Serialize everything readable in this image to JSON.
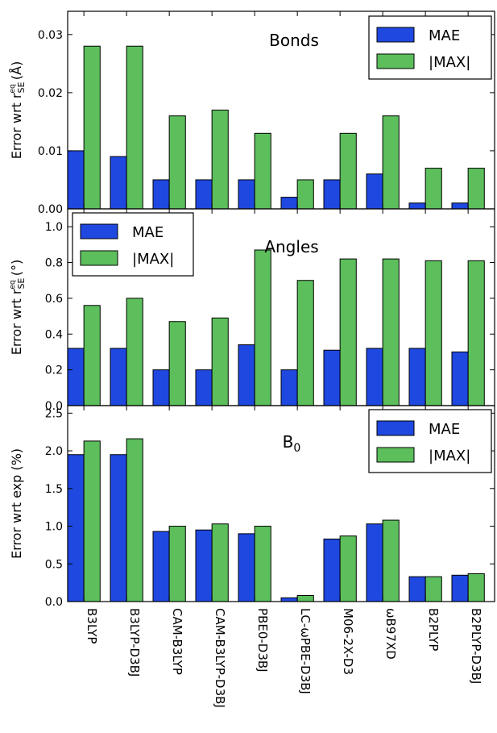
{
  "colors": {
    "mae": "#1f48e0",
    "max": "#5cbf5c",
    "edge": "#000000"
  },
  "chart_data": [
    {
      "type": "bar",
      "title": "Bonds",
      "ylabel": "Error wrt r_SE^eq (Å)",
      "ylabel_parts": {
        "pre": "Error wrt r",
        "sub": "SE",
        "sup": "eq",
        "post": " (Å)"
      },
      "ylim": [
        0,
        0.034
      ],
      "yticks": [
        0.0,
        0.01,
        0.02,
        0.03
      ],
      "ytick_labels": [
        "0.00",
        "0.01",
        "0.02",
        "0.03"
      ],
      "grid": false,
      "legend_position": "top-right",
      "categories": [
        "B3LYP",
        "B3LYP-D3BJ",
        "CAM-B3LYP",
        "CAM-B3LYP-D3BJ",
        "PBE0-D3BJ",
        "LC-ωPBE-D3BJ",
        "M06-2X-D3",
        "ωB97XD",
        "B2PLYP",
        "B2PLYP-D3BJ"
      ],
      "series": [
        {
          "name": "MAE",
          "values": [
            0.01,
            0.009,
            0.005,
            0.005,
            0.005,
            0.002,
            0.005,
            0.006,
            0.001,
            0.001
          ]
        },
        {
          "name": "|MAX|",
          "values": [
            0.028,
            0.028,
            0.016,
            0.017,
            0.013,
            0.005,
            0.013,
            0.016,
            0.007,
            0.007
          ]
        }
      ]
    },
    {
      "type": "bar",
      "title": "Angles",
      "ylabel": "Error wrt r_SE^eq (°)",
      "ylabel_parts": {
        "pre": "Error wrt r",
        "sub": "SE",
        "sup": "eq",
        "post": " (°)"
      },
      "ylim": [
        0,
        1.1
      ],
      "yticks": [
        0.0,
        0.2,
        0.4,
        0.6,
        0.8,
        1.0
      ],
      "ytick_labels": [
        "0.0",
        "0.2",
        "0.4",
        "0.6",
        "0.8",
        "1.0"
      ],
      "grid": false,
      "legend_position": "top-left",
      "categories": [
        "B3LYP",
        "B3LYP-D3BJ",
        "CAM-B3LYP",
        "CAM-B3LYP-D3BJ",
        "PBE0-D3BJ",
        "LC-ωPBE-D3BJ",
        "M06-2X-D3",
        "ωB97XD",
        "B2PLYP",
        "B2PLYP-D3BJ"
      ],
      "series": [
        {
          "name": "MAE",
          "values": [
            0.32,
            0.32,
            0.2,
            0.2,
            0.34,
            0.2,
            0.31,
            0.32,
            0.32,
            0.3
          ]
        },
        {
          "name": "|MAX|",
          "values": [
            0.56,
            0.6,
            0.47,
            0.49,
            0.87,
            0.7,
            0.82,
            0.82,
            0.81,
            0.81
          ]
        }
      ]
    },
    {
      "type": "bar",
      "title": "B0",
      "title_parts": {
        "main": "B",
        "sub": "0"
      },
      "ylabel": "Error wrt exp (%)",
      "ylim": [
        0,
        2.6
      ],
      "yticks": [
        0.0,
        0.5,
        1.0,
        1.5,
        2.0,
        2.5
      ],
      "ytick_labels": [
        "0.0",
        "0.5",
        "1.0",
        "1.5",
        "2.0",
        "2.5"
      ],
      "grid": false,
      "legend_position": "top-right",
      "categories": [
        "B3LYP",
        "B3LYP-D3BJ",
        "CAM-B3LYP",
        "CAM-B3LYP-D3BJ",
        "PBE0-D3BJ",
        "LC-ωPBE-D3BJ",
        "M06-2X-D3",
        "ωB97XD",
        "B2PLYP",
        "B2PLYP-D3BJ"
      ],
      "series": [
        {
          "name": "MAE",
          "values": [
            1.95,
            1.95,
            0.93,
            0.95,
            0.9,
            0.05,
            0.83,
            1.03,
            0.33,
            0.35
          ]
        },
        {
          "name": "|MAX|",
          "values": [
            2.13,
            2.16,
            1.0,
            1.03,
            1.0,
            0.08,
            0.87,
            1.08,
            0.33,
            0.37
          ]
        }
      ]
    }
  ]
}
